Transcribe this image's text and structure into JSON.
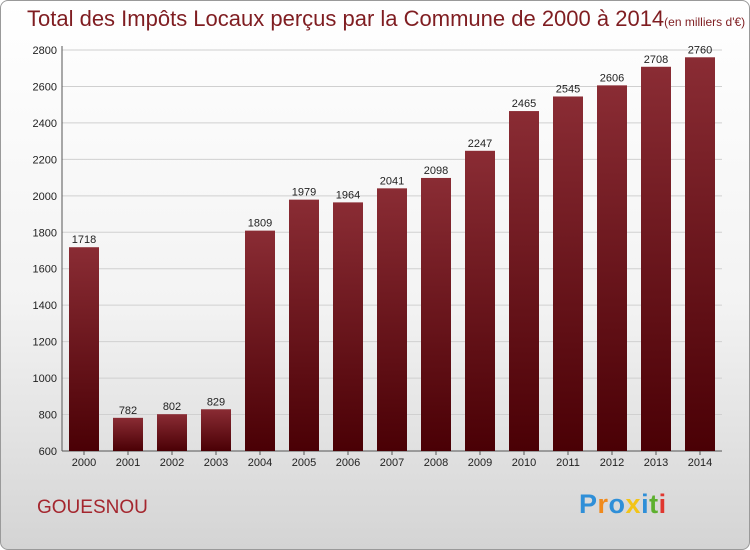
{
  "title": "Total des Impôts Locaux perçus par la Commune de 2000 à 2014",
  "unit_note": "(en milliers d'€)",
  "commune": "GOUESNOU",
  "logo": {
    "text": "Proxiti",
    "letters": [
      {
        "ch": "P",
        "color": "#2f8fd8"
      },
      {
        "ch": "r",
        "color": "#f08a1c"
      },
      {
        "ch": "o",
        "color": "#2f8fd8"
      },
      {
        "ch": "x",
        "color": "#f2c418"
      },
      {
        "ch": "i",
        "color": "#2f8fd8"
      },
      {
        "ch": "t",
        "color": "#5db02f"
      },
      {
        "ch": "i",
        "color": "#e0372f"
      }
    ]
  },
  "colors": {
    "bar_top": "#8a2c34",
    "bar_bottom": "#4a0005",
    "title": "#7f1d21",
    "grid": "#d0d0d0"
  },
  "chart_data": {
    "type": "bar",
    "title": "Total des Impôts Locaux perçus par la Commune de 2000 à 2014",
    "xlabel": "",
    "ylabel": "",
    "categories": [
      "2000",
      "2001",
      "2002",
      "2003",
      "2004",
      "2005",
      "2006",
      "2007",
      "2008",
      "2009",
      "2010",
      "2011",
      "2012",
      "2013",
      "2014"
    ],
    "values": [
      1718,
      782,
      802,
      829,
      1809,
      1979,
      1964,
      2041,
      2098,
      2247,
      2465,
      2545,
      2606,
      2708,
      2760
    ],
    "ylim": [
      600,
      2800
    ],
    "yticks": [
      600,
      800,
      1000,
      1200,
      1400,
      1600,
      1800,
      2000,
      2200,
      2400,
      2600,
      2800
    ],
    "grid": true,
    "legend": "none"
  }
}
